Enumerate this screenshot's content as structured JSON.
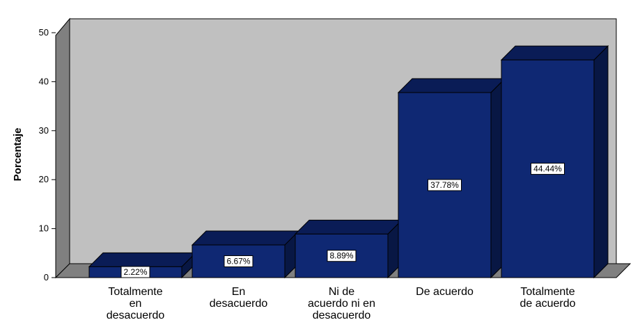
{
  "chart_data": {
    "type": "bar",
    "categories": [
      [
        "Totalmente",
        "en",
        "desacuerdo"
      ],
      [
        "En",
        "desacuerdo"
      ],
      [
        "Ni de",
        "acuerdo ni en",
        "desacuerdo"
      ],
      [
        "De acuerdo"
      ],
      [
        "Totalmente",
        "de acuerdo"
      ]
    ],
    "values": [
      2.22,
      6.67,
      8.89,
      37.78,
      44.44
    ],
    "data_labels": [
      "2.22%",
      "6.67%",
      "8.89%",
      "37.78%",
      "44.44%"
    ],
    "ylabel": "Porcentaje",
    "xlabel": "",
    "ylim": [
      0,
      50
    ],
    "yticks": [
      0,
      10,
      20,
      30,
      40,
      50
    ],
    "grid": false,
    "three_d": true,
    "colors": {
      "bar_front": "#0f2873",
      "bar_top": "#0a1c56",
      "bar_side": "#081744",
      "back_wall": "#c0c0c0",
      "side_wall": "#808080",
      "floor": "#808080"
    }
  }
}
